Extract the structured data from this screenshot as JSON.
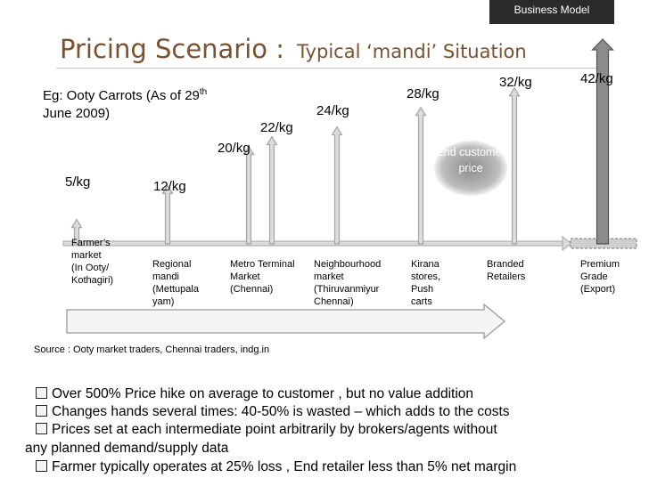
{
  "header": {
    "label": "Business Model",
    "bg": "#2b2b2b"
  },
  "title": {
    "main": "Pricing Scenario :",
    "sub": "Typical ‘mandi’  Situation",
    "color": "#7a5230"
  },
  "example": {
    "line1_prefix": "Eg: Ooty Carrots (As of 29",
    "line1_sup": "th",
    "line2": "June 2009)"
  },
  "end_customer": "End customer price",
  "source": "Source : Ooty market traders, Chennai traders, indg.in",
  "chart_data": {
    "type": "bar",
    "unit": "/kg",
    "categories": [
      "Farmer's market (In Ooty/ Kothagiri)",
      "Regional mandi (Mettupala yam)",
      "Metro Terminal Market (Chennai)",
      "Metro Terminal Market (Chennai)",
      "Neighbourhood market (Thiruvanmiyur Chennai)",
      "Kirana stores, Push carts",
      "Branded Retailers",
      "Premium Grade (Export)"
    ],
    "values": [
      5,
      12,
      20,
      22,
      24,
      28,
      32,
      42
    ],
    "price_labels": [
      "5/kg",
      "12/kg",
      "20/kg",
      "22/kg",
      "24/kg",
      "28/kg",
      "32/kg",
      "42/kg"
    ],
    "colors": {
      "arrow_fill": "#dcdcdc",
      "arrow_stroke": "#a4a4a4",
      "export_fill": "#8c8c8c",
      "export_stroke": "#555555"
    }
  },
  "stages": [
    {
      "label": "Farmer’s\nmarket\n(In Ooty/\nKothagiri)"
    },
    {
      "label": "Regional\nmandi\n(Mettupala\nyam)"
    },
    {
      "label": "Metro Terminal\nMarket\n(Chennai)"
    },
    {
      "label": "Neighbourhood\nmarket\n(Thiruvanmiyur\nChennai)"
    },
    {
      "label": "Kirana\nstores,\nPush\ncarts"
    },
    {
      "label": "Branded\nRetailers"
    },
    {
      "label": "Premium\nGrade\n(Export)"
    }
  ],
  "bullets": [
    "Over 500% Price hike on average to customer , but no value addition",
    "Changes hands several times: 40-50% is wasted – which adds to the costs",
    "Prices set at each intermediate point arbitrarily by brokers/agents without",
    "any  planned demand/supply data",
    "Farmer typically operates at 25% loss , End retailer less than 5% net margin"
  ]
}
